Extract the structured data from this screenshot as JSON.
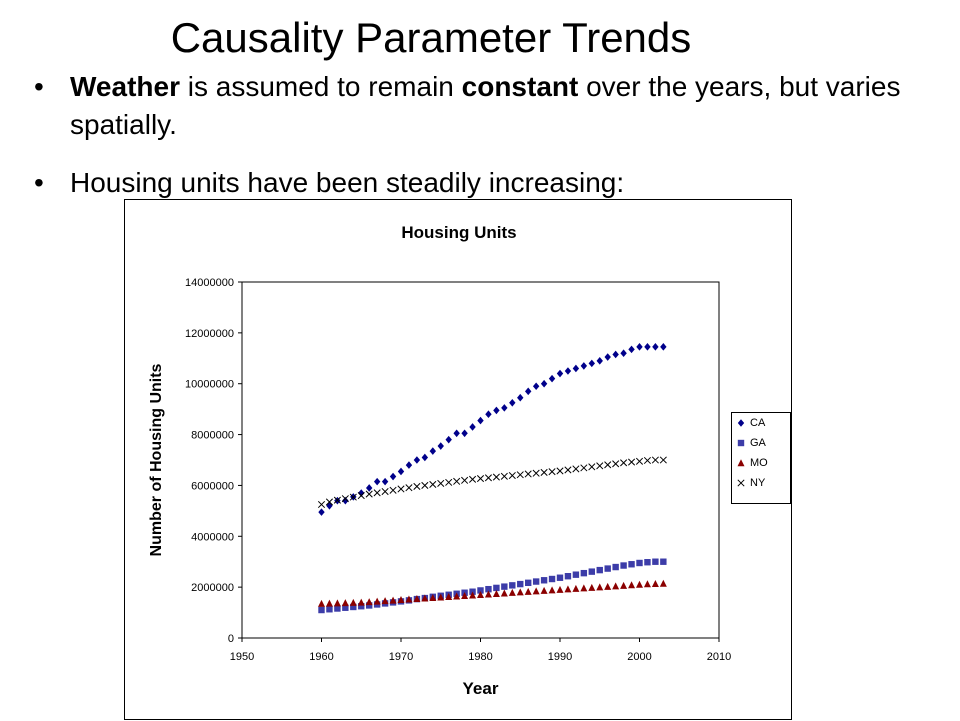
{
  "slide": {
    "title": "Causality Parameter Trends",
    "bullet_glyph": "•",
    "bullet1": {
      "parts": [
        {
          "text": "Weather",
          "bold": true
        },
        {
          "text": " is assumed to remain ",
          "bold": false
        },
        {
          "text": "constant",
          "bold": true
        },
        {
          "text": " over the years, but varies spatially.",
          "bold": false
        }
      ]
    },
    "bullet2": "Housing units have been steadily increasing:"
  },
  "chart_data": {
    "type": "scatter",
    "title": "Housing Units",
    "xlabel": "Year",
    "ylabel": "Number of Housing Units",
    "xlim": [
      1950,
      2010
    ],
    "ylim": [
      0,
      14000000
    ],
    "xticks": [
      1950,
      1960,
      1970,
      1980,
      1990,
      2000,
      2010
    ],
    "yticks": [
      0,
      2000000,
      4000000,
      6000000,
      8000000,
      10000000,
      12000000,
      14000000
    ],
    "grid": false,
    "plot_background": "#ffffff",
    "legend_position": "right",
    "series": [
      {
        "name": "CA",
        "marker": "diamond",
        "color": "#00008B",
        "x": [
          1960,
          1961,
          1962,
          1963,
          1964,
          1965,
          1966,
          1967,
          1968,
          1969,
          1970,
          1971,
          1972,
          1973,
          1974,
          1975,
          1976,
          1977,
          1978,
          1979,
          1980,
          1981,
          1982,
          1983,
          1984,
          1985,
          1986,
          1987,
          1988,
          1989,
          1990,
          1991,
          1992,
          1993,
          1994,
          1995,
          1996,
          1997,
          1998,
          1999,
          2000,
          2001,
          2002,
          2003
        ],
        "y": [
          4950000,
          5200000,
          5400000,
          5400000,
          5550000,
          5700000,
          5900000,
          6150000,
          6150000,
          6350000,
          6550000,
          6800000,
          7000000,
          7100000,
          7350000,
          7550000,
          7800000,
          8050000,
          8050000,
          8300000,
          8550000,
          8800000,
          8950000,
          9050000,
          9250000,
          9450000,
          9700000,
          9900000,
          10000000,
          10200000,
          10400000,
          10500000,
          10600000,
          10700000,
          10800000,
          10900000,
          11050000,
          11150000,
          11200000,
          11350000,
          11450000,
          11450000,
          11450000,
          11450000
        ]
      },
      {
        "name": "GA",
        "marker": "square",
        "color": "#3C3CA8",
        "x": [
          1960,
          1961,
          1962,
          1963,
          1964,
          1965,
          1966,
          1967,
          1968,
          1969,
          1970,
          1971,
          1972,
          1973,
          1974,
          1975,
          1976,
          1977,
          1978,
          1979,
          1980,
          1981,
          1982,
          1983,
          1984,
          1985,
          1986,
          1987,
          1988,
          1989,
          1990,
          1991,
          1992,
          1993,
          1994,
          1995,
          1996,
          1997,
          1998,
          1999,
          2000,
          2001,
          2002,
          2003
        ],
        "y": [
          1100000,
          1130000,
          1160000,
          1190000,
          1220000,
          1250000,
          1280000,
          1320000,
          1360000,
          1400000,
          1440000,
          1480000,
          1530000,
          1570000,
          1620000,
          1660000,
          1700000,
          1740000,
          1780000,
          1820000,
          1870000,
          1920000,
          1970000,
          2020000,
          2070000,
          2120000,
          2170000,
          2220000,
          2270000,
          2320000,
          2370000,
          2430000,
          2490000,
          2550000,
          2610000,
          2670000,
          2730000,
          2790000,
          2850000,
          2900000,
          2950000,
          2980000,
          3000000,
          3000000
        ]
      },
      {
        "name": "MO",
        "marker": "triangle",
        "color": "#8B0000",
        "x": [
          1960,
          1961,
          1962,
          1963,
          1964,
          1965,
          1966,
          1967,
          1968,
          1969,
          1970,
          1971,
          1972,
          1973,
          1974,
          1975,
          1976,
          1977,
          1978,
          1979,
          1980,
          1981,
          1982,
          1983,
          1984,
          1985,
          1986,
          1987,
          1988,
          1989,
          1990,
          1991,
          1992,
          1993,
          1994,
          1995,
          1996,
          1997,
          1998,
          1999,
          2000,
          2001,
          2002,
          2003
        ],
        "y": [
          1350000,
          1360000,
          1370000,
          1380000,
          1390000,
          1400000,
          1420000,
          1440000,
          1460000,
          1480000,
          1500000,
          1520000,
          1540000,
          1560000,
          1580000,
          1600000,
          1620000,
          1640000,
          1660000,
          1680000,
          1700000,
          1720000,
          1740000,
          1760000,
          1780000,
          1800000,
          1820000,
          1840000,
          1860000,
          1880000,
          1900000,
          1920000,
          1940000,
          1960000,
          1980000,
          2000000,
          2020000,
          2040000,
          2060000,
          2080000,
          2100000,
          2120000,
          2130000,
          2140000
        ]
      },
      {
        "name": "NY",
        "marker": "x",
        "color": "#000000",
        "x": [
          1960,
          1961,
          1962,
          1963,
          1964,
          1965,
          1966,
          1967,
          1968,
          1969,
          1970,
          1971,
          1972,
          1973,
          1974,
          1975,
          1976,
          1977,
          1978,
          1979,
          1980,
          1981,
          1982,
          1983,
          1984,
          1985,
          1986,
          1987,
          1988,
          1989,
          1990,
          1991,
          1992,
          1993,
          1994,
          1995,
          1996,
          1997,
          1998,
          1999,
          2000,
          2001,
          2002,
          2003
        ],
        "y": [
          5250000,
          5350000,
          5420000,
          5480000,
          5540000,
          5600000,
          5660000,
          5710000,
          5760000,
          5810000,
          5860000,
          5910000,
          5960000,
          6000000,
          6040000,
          6080000,
          6120000,
          6160000,
          6200000,
          6240000,
          6270000,
          6300000,
          6330000,
          6360000,
          6390000,
          6420000,
          6450000,
          6480000,
          6510000,
          6540000,
          6570000,
          6610000,
          6650000,
          6690000,
          6730000,
          6770000,
          6810000,
          6850000,
          6890000,
          6920000,
          6950000,
          6980000,
          7000000,
          7000000
        ]
      }
    ]
  }
}
